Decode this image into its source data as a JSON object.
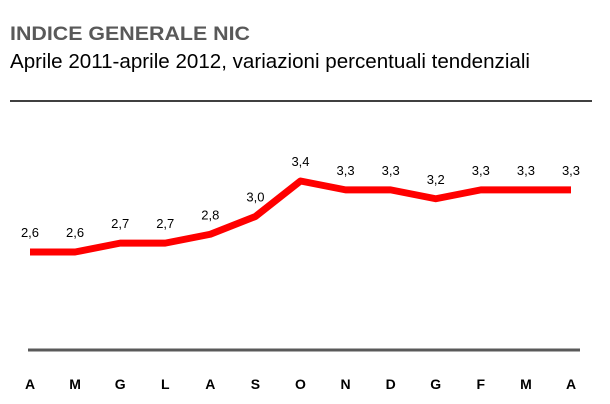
{
  "chart_data": {
    "type": "line",
    "title": "INDICE GENERALE NIC",
    "subtitle": "Aprile 2011-aprile 2012, variazioni percentuali tendenziali",
    "categories": [
      "A",
      "M",
      "G",
      "L",
      "A",
      "S",
      "O",
      "N",
      "D",
      "G",
      "F",
      "M",
      "A"
    ],
    "series": [
      {
        "values": [
          2.6,
          2.6,
          2.7,
          2.7,
          2.8,
          3.0,
          3.4,
          3.3,
          3.3,
          3.2,
          3.3,
          3.3,
          3.3
        ],
        "labels": [
          "2,6",
          "2,6",
          "2,7",
          "2,7",
          "2,8",
          "3,0",
          "3,4",
          "3,3",
          "3,3",
          "3,2",
          "3,3",
          "3,3",
          "3,3"
        ],
        "color": "#ff0000"
      }
    ],
    "xlabel": "",
    "ylabel": "",
    "grid": false,
    "legend": "none"
  }
}
